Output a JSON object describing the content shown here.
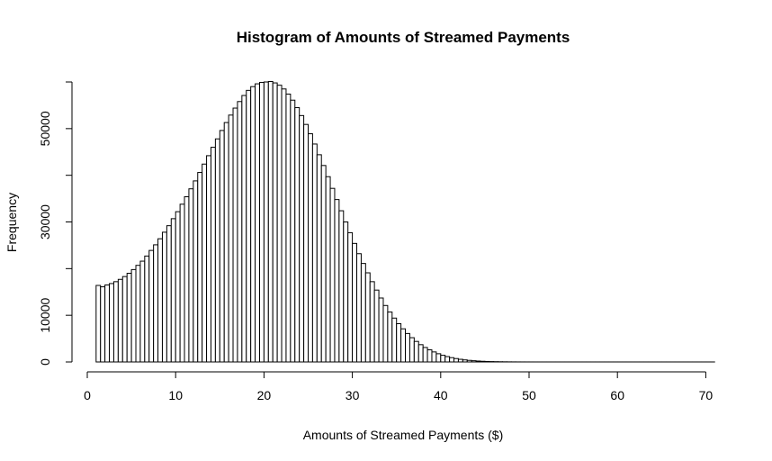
{
  "chart_data": {
    "type": "bar",
    "title": "Histogram of Amounts of Streamed Payments",
    "xlabel": "Amounts of Streamed Payments ($)",
    "ylabel": "Frequency",
    "bin_width": 0.5,
    "bin_start": 1,
    "xlim": [
      0,
      71
    ],
    "ylim": [
      0,
      60000
    ],
    "x_ticks": [
      0,
      10,
      20,
      30,
      40,
      50,
      60,
      70
    ],
    "y_ticks": [
      0,
      10000,
      30000,
      50000
    ],
    "grid": false,
    "legend": "none",
    "values": [
      16400,
      16100,
      16500,
      16800,
      17200,
      17700,
      18300,
      19000,
      19800,
      20700,
      21600,
      22700,
      23900,
      25100,
      26400,
      27800,
      29200,
      30700,
      32200,
      33800,
      35400,
      37100,
      38800,
      40600,
      42400,
      44200,
      46000,
      47800,
      49600,
      51300,
      52900,
      54400,
      55800,
      57100,
      58200,
      59000,
      59600,
      59900,
      60000,
      60100,
      59800,
      59300,
      58500,
      57400,
      56100,
      54500,
      52800,
      50900,
      48900,
      46700,
      44400,
      42100,
      39700,
      37200,
      34800,
      32400,
      30000,
      27700,
      25400,
      23200,
      21100,
      19100,
      17200,
      15400,
      13700,
      12100,
      10700,
      9400,
      8200,
      7100,
      6100,
      5200,
      4400,
      3700,
      3100,
      2600,
      2150,
      1760,
      1430,
      1150,
      920,
      730,
      570,
      440,
      340,
      260,
      195,
      145,
      108,
      80,
      58,
      42,
      30,
      21,
      15,
      10,
      7,
      5,
      3,
      2,
      2,
      1,
      1,
      1,
      1,
      1,
      1,
      1,
      1,
      1,
      1,
      1,
      1,
      1,
      1,
      1,
      1,
      1,
      1,
      1,
      1,
      1,
      1,
      1,
      1,
      1,
      1,
      1,
      1,
      1,
      1,
      1,
      1,
      1,
      1,
      1,
      1,
      1,
      1,
      1
    ]
  }
}
